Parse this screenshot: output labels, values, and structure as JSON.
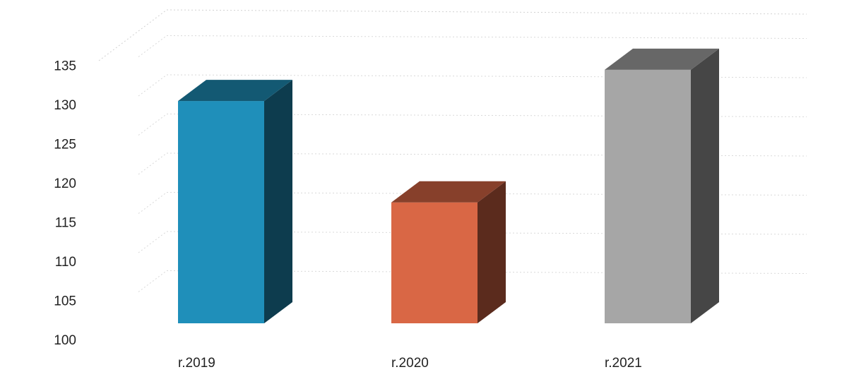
{
  "chart_data": {
    "type": "bar",
    "style": "3d-column",
    "categories": [
      "r.2019",
      "r.2020",
      "r.2021"
    ],
    "values": [
      128.5,
      115.5,
      132.5
    ],
    "colors": [
      "#1f8fba",
      "#d96745",
      "#a6a6a6"
    ],
    "ylim": [
      100,
      135
    ],
    "yticks": [
      "100",
      "105",
      "110",
      "115",
      "120",
      "125",
      "130",
      "135"
    ],
    "grid": true
  }
}
